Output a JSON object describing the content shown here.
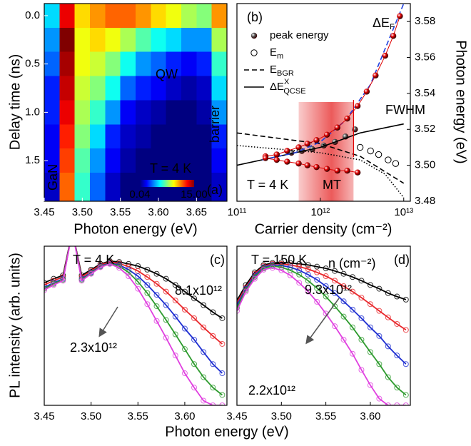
{
  "chart_data": [
    {
      "type": "heatmap",
      "label": "(a)",
      "xlabel": "Photon energy (eV)",
      "ylabel": "Delay time (ns)",
      "xlim": [
        3.45,
        3.69
      ],
      "xticks": [
        3.45,
        {
          "value": 3.5,
          "label": "3.50"
        },
        3.55,
        {
          "value": 3.6,
          "label": "3.60"
        },
        3.65
      ],
      "ylim": [
        -0.125,
        1.92
      ],
      "y_inverted": true,
      "yticks": [
        {
          "value": 0,
          "label": "0.0"
        },
        0.5,
        {
          "value": 1,
          "label": "1.0"
        },
        1.5
      ],
      "x": [
        3.46,
        3.48,
        3.5,
        3.52,
        3.54,
        3.56,
        3.58,
        3.6,
        3.62,
        3.64,
        3.66,
        3.68
      ],
      "y": [
        0,
        0.25,
        0.5,
        0.75,
        1,
        1.25,
        1.5,
        1.75
      ],
      "z": [
        [
          0.3,
          8,
          2,
          3,
          4,
          4,
          3,
          2,
          1.5,
          1,
          0.8,
          3
        ],
        [
          0.2,
          15,
          1.5,
          2,
          1.5,
          1,
          0.6,
          0.4,
          0.3,
          0.2,
          0.2,
          1
        ],
        [
          0.15,
          12,
          1.5,
          1.2,
          0.8,
          0.4,
          0.2,
          0.15,
          0.1,
          0.08,
          0.1,
          0.5
        ],
        [
          0.1,
          10,
          1.2,
          0.8,
          0.4,
          0.15,
          0.1,
          0.08,
          0.06,
          0.05,
          0.06,
          0.3
        ],
        [
          0.1,
          8,
          1,
          0.5,
          0.2,
          0.08,
          0.06,
          0.05,
          0.04,
          0.04,
          0.05,
          0.2
        ],
        [
          0.08,
          6,
          0.8,
          0.3,
          0.1,
          0.06,
          0.05,
          0.04,
          0.04,
          0.04,
          0.04,
          0.1
        ],
        [
          0.08,
          5,
          0.6,
          0.2,
          0.08,
          0.05,
          0.04,
          0.04,
          0.04,
          0.04,
          0.04,
          0.08
        ],
        [
          0.06,
          4,
          0.5,
          0.15,
          0.06,
          0.04,
          0.04,
          0.04,
          0.04,
          0.04,
          0.04,
          0.06
        ]
      ],
      "clim": [
        0.04,
        15
      ],
      "log_color": true,
      "colorbar_ticks": [
        0.04,
        {
          "value": 15,
          "label": "15.00"
        }
      ],
      "annotations": [
        "QW",
        "GaN",
        "barrier",
        "T = 4 K"
      ]
    },
    {
      "type": "scatter",
      "label": "(b)",
      "xlabel": "Carrier density (cm⁻²)",
      "ylabel": "Photon energy (eV)",
      "log_x": true,
      "xlim": [
        100000000000.0,
        12000000000000.0
      ],
      "xticks": [
        {
          "value": 100000000000.0,
          "label": "10¹¹"
        },
        {
          "value": 1000000000000.0,
          "label": "10¹²"
        },
        {
          "value": 10000000000000.0,
          "label": "10¹³"
        }
      ],
      "ylim": [
        3.48,
        3.59
      ],
      "yticks": [
        3.48,
        {
          "value": 3.5,
          "label": "3.50"
        },
        3.52,
        3.54,
        3.56,
        3.58
      ],
      "yaxis_side": "right",
      "shaded_x": [
        550000000000.0,
        2500000000000.0
      ],
      "annotations": [
        {
          "text": "ΔE",
          "sub": "F"
        },
        "FWHM",
        "T = 4 K",
        "MT"
      ],
      "series": [
        {
          "name": "peak energy",
          "color": "#555555",
          "marker": "sphere",
          "x": [
            300000000000.0,
            450000000000.0,
            600000000000.0,
            800000000000.0,
            1100000000000.0,
            1500000000000.0,
            2000000000000.0,
            2600000000000.0
          ],
          "values": [
            3.506,
            3.507,
            3.508,
            3.509,
            3.511,
            3.513,
            3.516,
            3.52
          ]
        },
        {
          "name": "E",
          "sub": "m",
          "color": "#000000",
          "marker": "open",
          "x": [
            3000000000000.0,
            4000000000000.0,
            5000000000000.0,
            6500000000000.0,
            8000000000000.0
          ],
          "values": [
            3.51,
            3.508,
            3.506,
            3.503,
            3.501
          ]
        },
        {
          "name": "E",
          "sub": "BGR",
          "color": "#000000",
          "dash": "dashed",
          "x": [
            100000000000.0,
            1000000000000.0,
            3000000000000.0,
            10000000000000.0
          ],
          "values": [
            3.518,
            3.512,
            3.505,
            3.49
          ]
        },
        {
          "color": "#000000",
          "dash": "dotted",
          "x": [
            100000000000.0,
            1000000000000.0,
            3000000000000.0,
            6000000000000.0,
            10000000000000.0
          ],
          "values": [
            3.511,
            3.507,
            3.503,
            3.495,
            3.482
          ]
        },
        {
          "name": "ΔE",
          "sup": "X",
          "sub": "QCSE",
          "color": "#000000",
          "dash": "solid",
          "x": [
            100000000000.0,
            1000000000000.0,
            3000000000000.0,
            10000000000000.0
          ],
          "values": [
            3.5,
            3.51,
            3.518,
            3.523
          ]
        },
        {
          "color": "#2040e0",
          "dash": "dashed",
          "x": [
            200000000000.0,
            500000000000.0,
            1000000000000.0,
            2000000000000.0,
            4000000000000.0,
            6000000000000.0,
            10000000000000.0
          ],
          "values": [
            3.503,
            3.507,
            3.513,
            3.525,
            3.545,
            3.565,
            3.59
          ]
        },
        {
          "color": "#e00000",
          "marker": "sphere",
          "line": true,
          "x": [
            220000000000.0,
            300000000000.0,
            400000000000.0,
            550000000000.0,
            700000000000.0,
            900000000000.0,
            1200000000000.0,
            1600000000000.0,
            2100000000000.0,
            2800000000000.0,
            3600000000000.0,
            4600000000000.0,
            6000000000000.0,
            7500000000000.0,
            9000000000000.0
          ],
          "values": [
            3.505,
            3.506,
            3.508,
            3.51,
            3.512,
            3.514,
            3.517,
            3.521,
            3.526,
            3.533,
            3.541,
            3.55,
            3.561,
            3.572,
            3.583
          ]
        },
        {
          "color": "#e00000",
          "marker": "sphere",
          "line": true,
          "x": [
            220000000000.0,
            300000000000.0,
            400000000000.0,
            550000000000.0,
            700000000000.0,
            900000000000.0,
            1200000000000.0,
            1600000000000.0,
            2100000000000.0,
            2800000000000.0
          ],
          "values": [
            3.504,
            3.503,
            3.502,
            3.501,
            3.5,
            3.499,
            3.498,
            3.497,
            3.497,
            3.496
          ]
        }
      ]
    },
    {
      "type": "line",
      "label": "(c)",
      "xlabel": "Photon energy (eV)",
      "ylabel": "PL intensity (arb. units)",
      "log_y": true,
      "xlim": [
        3.45,
        3.645
      ],
      "xticks": [
        3.45,
        {
          "value": 3.5,
          "label": "3.50"
        },
        3.55,
        {
          "value": 3.6,
          "label": "3.60"
        }
      ],
      "ylim": [
        1,
        500
      ],
      "annotations": [
        "T = 4 K",
        "8.1x10¹²",
        "2.3x10¹²"
      ],
      "x": [
        3.45,
        3.46,
        3.47,
        3.48,
        3.49,
        3.5,
        3.51,
        3.52,
        3.53,
        3.54,
        3.55,
        3.56,
        3.57,
        3.58,
        3.59,
        3.6,
        3.61,
        3.62,
        3.63,
        3.64
      ],
      "series": [
        {
          "color": "#000000",
          "values": [
            120,
            140,
            160,
            900,
            160,
            200,
            250,
            280,
            270,
            250,
            230,
            200,
            170,
            140,
            110,
            85,
            65,
            50,
            38,
            30
          ]
        },
        {
          "color": "#e8262a",
          "values": [
            110,
            130,
            150,
            900,
            150,
            190,
            240,
            270,
            255,
            225,
            190,
            150,
            115,
            85,
            60,
            42,
            30,
            21,
            15,
            11
          ]
        },
        {
          "color": "#1f2fd1",
          "values": [
            100,
            120,
            140,
            900,
            140,
            180,
            230,
            260,
            240,
            200,
            155,
            110,
            75,
            50,
            32,
            20,
            13,
            8,
            5,
            3.5
          ]
        },
        {
          "color": "#2c9a2c",
          "values": [
            95,
            115,
            135,
            900,
            135,
            175,
            225,
            255,
            230,
            180,
            125,
            80,
            48,
            28,
            16,
            9,
            5,
            3,
            2,
            1.5
          ]
        },
        {
          "color": "#e040e0",
          "values": [
            90,
            110,
            130,
            900,
            130,
            170,
            220,
            250,
            215,
            155,
            95,
            52,
            27,
            14,
            7,
            3.5,
            2,
            1.2,
            1,
            1
          ]
        }
      ]
    },
    {
      "type": "line",
      "label": "(d)",
      "log_y": true,
      "xlim": [
        3.45,
        3.645
      ],
      "xticks": [
        3.45,
        {
          "value": 3.5,
          "label": "3.50"
        },
        3.55,
        {
          "value": 3.6,
          "label": "3.60"
        }
      ],
      "ylim": [
        1,
        500
      ],
      "annotations": [
        "T = 150 K",
        "n (cm⁻²)",
        "9.3x10¹²",
        "2.2x10¹²"
      ],
      "x": [
        3.45,
        3.46,
        3.47,
        3.48,
        3.49,
        3.5,
        3.51,
        3.52,
        3.53,
        3.54,
        3.55,
        3.56,
        3.57,
        3.58,
        3.59,
        3.6,
        3.61,
        3.62,
        3.63,
        3.64
      ],
      "series": [
        {
          "color": "#000000",
          "values": [
            60,
            110,
            180,
            240,
            260,
            265,
            260,
            250,
            240,
            225,
            210,
            190,
            170,
            150,
            130,
            110,
            95,
            80,
            70,
            62
          ]
        },
        {
          "color": "#e8262a",
          "values": [
            55,
            100,
            170,
            230,
            250,
            250,
            240,
            225,
            205,
            180,
            155,
            130,
            105,
            85,
            67,
            52,
            40,
            31,
            24,
            19
          ]
        },
        {
          "color": "#1f2fd1",
          "values": [
            50,
            95,
            160,
            220,
            240,
            235,
            220,
            195,
            165,
            135,
            105,
            80,
            58,
            42,
            30,
            21,
            15,
            10,
            7,
            5
          ]
        },
        {
          "color": "#2c9a2c",
          "values": [
            45,
            90,
            150,
            210,
            230,
            220,
            195,
            165,
            130,
            97,
            70,
            48,
            32,
            21,
            13,
            8,
            5,
            3,
            2,
            1.5
          ]
        },
        {
          "color": "#e040e0",
          "values": [
            40,
            85,
            140,
            200,
            215,
            195,
            160,
            120,
            85,
            57,
            36,
            22,
            13,
            7.5,
            4,
            2.2,
            1.3,
            1,
            1,
            1
          ]
        }
      ]
    }
  ]
}
